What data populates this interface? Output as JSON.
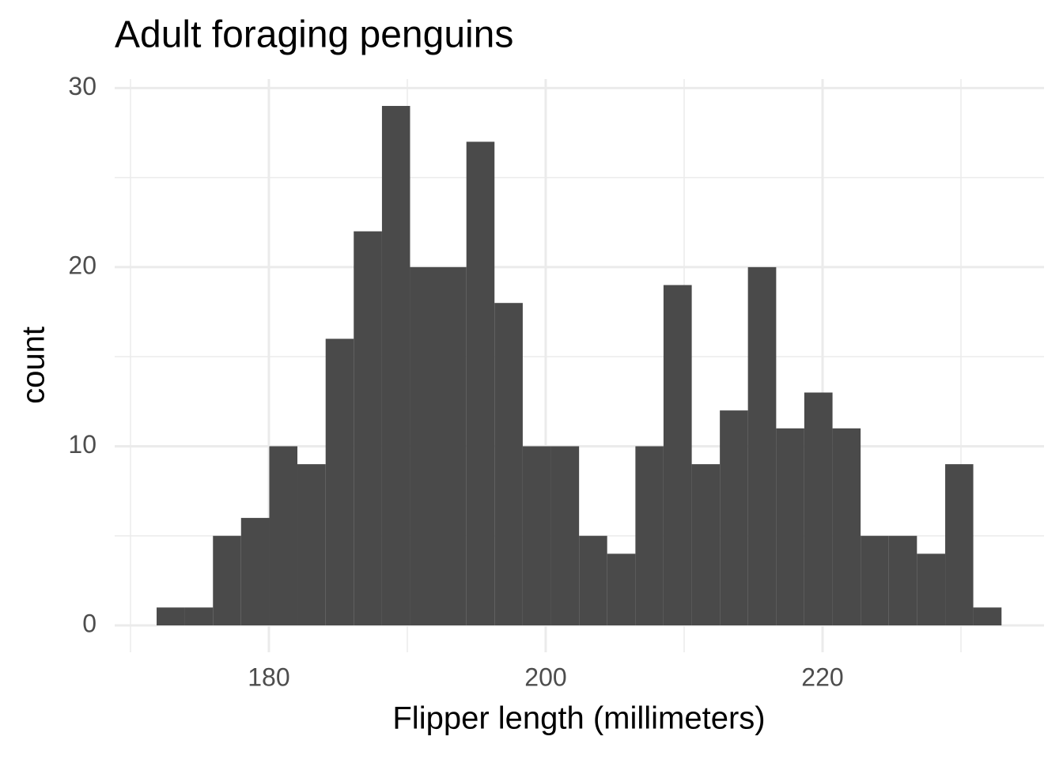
{
  "chart_data": {
    "type": "histogram",
    "title": "Adult foraging penguins",
    "x_label": "Flipper length (millimeters)",
    "y_label": "count",
    "bins": [
      171.89,
      173.92,
      175.96,
      177.99,
      180.03,
      182.06,
      184.1,
      186.13,
      188.17,
      190.2,
      192.23,
      194.27,
      196.3,
      198.34,
      200.37,
      202.41,
      204.44,
      206.48,
      208.51,
      210.55,
      212.58,
      214.61,
      216.65,
      218.68,
      220.72,
      222.75,
      224.79,
      226.82,
      228.86,
      230.89,
      232.93
    ],
    "counts": [
      1,
      1,
      5,
      6,
      10,
      9,
      16,
      22,
      29,
      20,
      20,
      27,
      18,
      10,
      10,
      5,
      4,
      10,
      19,
      9,
      12,
      20,
      11,
      13,
      11,
      5,
      5,
      4,
      9,
      1
    ],
    "color": "#4a4a4a",
    "xlim": [
      168.86,
      236
    ],
    "ylim": [
      -1.5,
      30.5
    ],
    "xticks": [
      180,
      200,
      220
    ],
    "yticks": [
      0,
      10,
      20,
      30
    ],
    "minor_xticks": [
      170,
      190,
      210,
      230
    ],
    "minor_yticks": [
      5,
      15,
      25
    ],
    "grid": true
  }
}
